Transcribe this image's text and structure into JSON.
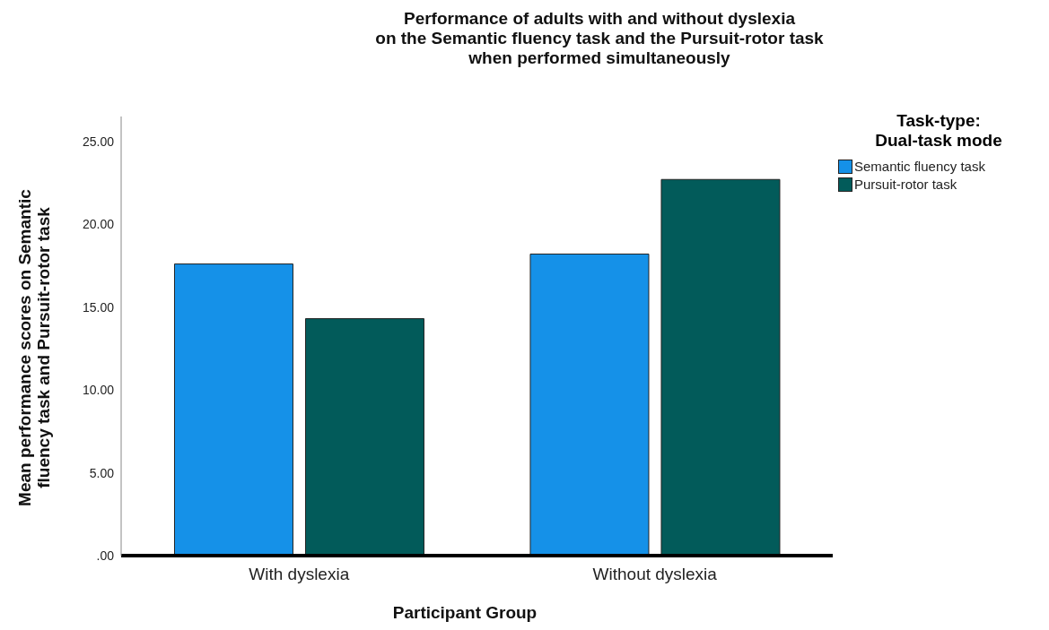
{
  "chart_data": {
    "type": "bar",
    "title": "Performance of adults with and without dyslexia\non the Semantic fluency task and the Pursuit-rotor task\nwhen performed simultaneously",
    "xlabel": "Participant Group",
    "ylabel": "Mean performance scores on Semantic\nfluency task and Pursuit-rotor task",
    "legend_title": "Task-type:\nDual-task mode",
    "categories": [
      "With dyslexia",
      "Without dyslexia"
    ],
    "series": [
      {
        "name": "Semantic fluency task",
        "color": "#1591e8",
        "values": [
          17.6,
          18.2
        ]
      },
      {
        "name": "Pursuit-rotor task",
        "color": "#025b5a",
        "values": [
          14.3,
          22.7
        ]
      }
    ],
    "ylim": [
      0,
      26.5
    ],
    "yticks": [
      {
        "value": 0,
        "label": ".00"
      },
      {
        "value": 5,
        "label": "5.00"
      },
      {
        "value": 10,
        "label": "10.00"
      },
      {
        "value": 15,
        "label": "15.00"
      },
      {
        "value": 20,
        "label": "20.00"
      },
      {
        "value": 25,
        "label": "25.00"
      }
    ],
    "grid": false,
    "legend": "top right"
  }
}
